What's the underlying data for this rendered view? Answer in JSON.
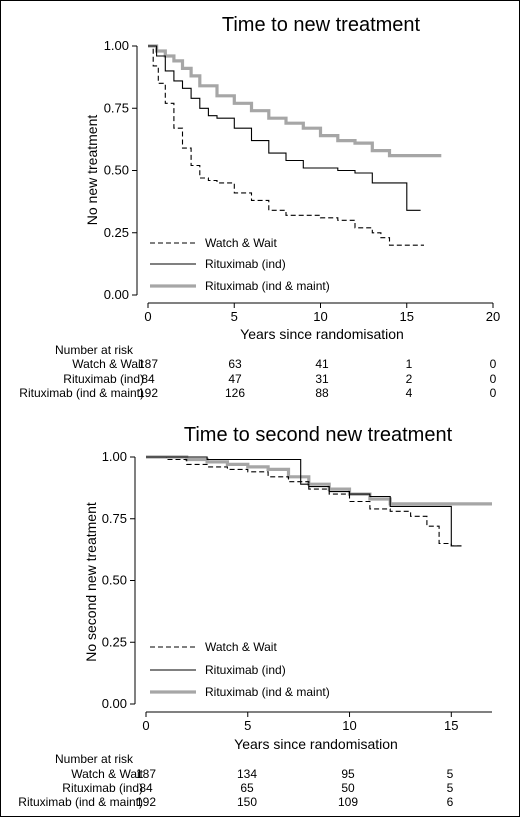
{
  "colors": {
    "watch_wait": "#000000",
    "rituximab_ind": "#000000",
    "rituximab_ind_maint": "#a6a6a6",
    "axis": "#000000",
    "background": "#ffffff"
  },
  "chart_data": [
    {
      "type": "line",
      "subtype": "kaplan-meier step",
      "title": "Time to new treatment",
      "xlabel": "Years since randomisation",
      "ylabel": "No new treatment",
      "xlim": [
        0,
        20
      ],
      "ylim": [
        0,
        1
      ],
      "x_ticks": [
        0,
        5,
        10,
        15,
        20
      ],
      "y_ticks": [
        0.0,
        0.25,
        0.5,
        0.75,
        1.0
      ],
      "y_tick_labels": [
        "0.00",
        "0.25",
        "0.50",
        "0.75",
        "1.00"
      ],
      "grid": false,
      "legend_position": "bottom-left",
      "series": [
        {
          "name": "Watch & Wait",
          "style": "dashed",
          "x": [
            0,
            0.3,
            0.6,
            1.0,
            1.5,
            2.0,
            2.5,
            3.0,
            3.5,
            4.0,
            5.0,
            6.0,
            7.0,
            8.0,
            9.0,
            10.0,
            11.0,
            12.0,
            13.0,
            13.5,
            14.0,
            16.0
          ],
          "y": [
            1.0,
            0.92,
            0.85,
            0.77,
            0.67,
            0.59,
            0.52,
            0.47,
            0.46,
            0.45,
            0.41,
            0.38,
            0.34,
            0.32,
            0.32,
            0.31,
            0.3,
            0.27,
            0.25,
            0.23,
            0.2,
            0.2
          ]
        },
        {
          "name": "Rituximab (ind)",
          "style": "solid",
          "x": [
            0,
            0.5,
            1.0,
            1.5,
            2.0,
            2.5,
            3.0,
            3.5,
            4.0,
            5.0,
            6.0,
            7.0,
            8.0,
            9.0,
            10.0,
            11.0,
            12.0,
            13.0,
            14.0,
            14.9,
            15.0,
            15.8
          ],
          "y": [
            1.0,
            0.96,
            0.9,
            0.86,
            0.83,
            0.79,
            0.75,
            0.72,
            0.71,
            0.67,
            0.62,
            0.57,
            0.54,
            0.51,
            0.51,
            0.5,
            0.49,
            0.45,
            0.45,
            0.45,
            0.34,
            0.34
          ]
        },
        {
          "name": "Rituximab (ind & maint)",
          "style": "thick grey",
          "x": [
            0,
            0.5,
            1.0,
            1.5,
            2.0,
            2.5,
            3.0,
            4.0,
            5.0,
            6.0,
            7.0,
            8.0,
            9.0,
            10.0,
            11.0,
            12.0,
            13.0,
            14.0,
            15.0,
            16.0,
            17.0
          ],
          "y": [
            1.0,
            0.98,
            0.96,
            0.94,
            0.91,
            0.88,
            0.84,
            0.8,
            0.77,
            0.74,
            0.71,
            0.69,
            0.67,
            0.64,
            0.62,
            0.61,
            0.58,
            0.56,
            0.56,
            0.56,
            0.56
          ]
        }
      ],
      "risk_table": {
        "heading": "Number at risk",
        "x_positions": [
          0,
          5,
          10,
          15,
          20
        ],
        "rows": [
          {
            "label": "Watch & Wait",
            "values": [
              "187",
              "63",
              "41",
              "1",
              "0"
            ]
          },
          {
            "label": "Rituximab (ind)",
            "values": [
              "84",
              "47",
              "31",
              "2",
              "0"
            ]
          },
          {
            "label": "Rituximab (ind & maint)",
            "values": [
              "192",
              "126",
              "88",
              "4",
              "0"
            ]
          }
        ]
      }
    },
    {
      "type": "line",
      "subtype": "kaplan-meier step",
      "title": "Time to second new treatment",
      "xlabel": "Years since randomisation",
      "ylabel": "No second new treatment",
      "xlim": [
        0,
        17
      ],
      "ylim": [
        0,
        1
      ],
      "x_ticks": [
        0,
        5,
        10,
        15
      ],
      "y_ticks": [
        0.0,
        0.25,
        0.5,
        0.75,
        1.0
      ],
      "y_tick_labels": [
        "0.00",
        "0.25",
        "0.50",
        "0.75",
        "1.00"
      ],
      "grid": false,
      "legend_position": "bottom-left",
      "series": [
        {
          "name": "Watch & Wait",
          "style": "dashed",
          "x": [
            0,
            1.0,
            2.0,
            3.0,
            4.0,
            5.0,
            6.0,
            7.0,
            8.0,
            9.0,
            10.0,
            11.0,
            12.0,
            13.0,
            13.8,
            14.4,
            15.0,
            15.5
          ],
          "y": [
            1.0,
            0.99,
            0.97,
            0.96,
            0.95,
            0.94,
            0.92,
            0.9,
            0.87,
            0.85,
            0.82,
            0.79,
            0.78,
            0.76,
            0.72,
            0.65,
            0.64,
            0.64
          ]
        },
        {
          "name": "Rituximab (ind)",
          "style": "solid",
          "x": [
            0,
            3.0,
            5.0,
            7.0,
            7.6,
            8.0,
            9.0,
            10.0,
            11.0,
            12.0,
            13.0,
            14.0,
            14.9,
            15.0,
            15.5
          ],
          "y": [
            1.0,
            0.99,
            0.99,
            0.99,
            0.89,
            0.88,
            0.86,
            0.85,
            0.84,
            0.8,
            0.8,
            0.8,
            0.8,
            0.64,
            0.64
          ]
        },
        {
          "name": "Rituximab (ind & maint)",
          "style": "thick grey",
          "x": [
            0,
            2.0,
            3.0,
            4.0,
            5.0,
            6.0,
            7.0,
            8.0,
            9.0,
            10.0,
            11.0,
            12.0,
            13.0,
            14.0,
            15.0,
            16.0,
            17.0
          ],
          "y": [
            1.0,
            0.99,
            0.98,
            0.97,
            0.96,
            0.95,
            0.92,
            0.89,
            0.87,
            0.85,
            0.83,
            0.81,
            0.81,
            0.81,
            0.81,
            0.81,
            0.81
          ]
        }
      ],
      "risk_table": {
        "heading": "Number at risk",
        "x_positions": [
          0,
          5,
          10,
          15
        ],
        "rows": [
          {
            "label": "Watch & Wait",
            "values": [
              "187",
              "134",
              "95",
              "5"
            ]
          },
          {
            "label": "Rituximab (ind)",
            "values": [
              "84",
              "65",
              "50",
              "5"
            ]
          },
          {
            "label": "Rituximab (ind & maint)",
            "values": [
              "192",
              "150",
              "109",
              "6"
            ]
          }
        ]
      }
    }
  ]
}
